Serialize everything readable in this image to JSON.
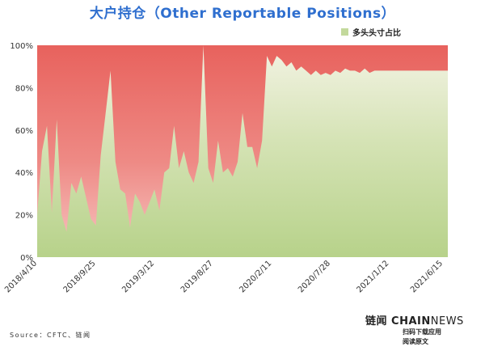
{
  "title": "大户持仓（Other Reportable Positions）",
  "source": "Source：CFTC、链闻",
  "brand": {
    "cn": "链闻",
    "en_bold": "CHAIN",
    "en_light": "NEWS",
    "sub1": "扫码下载应用",
    "sub2": "阅读原文"
  },
  "colors": {
    "top": "#e96a64",
    "top_light": "#f4b3b0",
    "bottom": "#b9d48d",
    "bottom_light": "#e8efd4"
  },
  "chart_data": {
    "type": "area",
    "title": "大户持仓（Other Reportable Positions）",
    "xlabel": "",
    "ylabel": "",
    "ylim": [
      0,
      100
    ],
    "y_ticks": [
      "0%",
      "20%",
      "40%",
      "60%",
      "80%",
      "100%"
    ],
    "x_ticks": [
      "2018/4/10",
      "2018/9/25",
      "2019/3/12",
      "2019/8/27",
      "2020/2/11",
      "2020/7/28",
      "2021/1/12",
      "2021/6/15"
    ],
    "legend": {
      "label": "多头头寸占比",
      "position": "top-right"
    },
    "series": [
      {
        "name": "多头头寸占比",
        "x": [
          "2018/4/10",
          "2018/4/24",
          "2018/5/8",
          "2018/5/22",
          "2018/6/5",
          "2018/6/19",
          "2018/7/3",
          "2018/7/17",
          "2018/7/31",
          "2018/8/14",
          "2018/8/28",
          "2018/9/11",
          "2018/9/25",
          "2018/10/9",
          "2018/10/23",
          "2018/11/6",
          "2018/11/20",
          "2018/12/4",
          "2018/12/18",
          "2019/1/1",
          "2019/1/15",
          "2019/1/29",
          "2019/2/12",
          "2019/2/26",
          "2019/3/12",
          "2019/3/26",
          "2019/4/9",
          "2019/4/23",
          "2019/5/7",
          "2019/5/21",
          "2019/6/4",
          "2019/6/18",
          "2019/7/2",
          "2019/7/16",
          "2019/7/30",
          "2019/8/13",
          "2019/8/27",
          "2019/9/10",
          "2019/9/24",
          "2019/10/8",
          "2019/10/22",
          "2019/11/5",
          "2019/11/19",
          "2019/12/3",
          "2019/12/17",
          "2019/12/31",
          "2020/1/14",
          "2020/1/28",
          "2020/2/11",
          "2020/2/25",
          "2020/3/10",
          "2020/3/24",
          "2020/4/7",
          "2020/4/21",
          "2020/5/5",
          "2020/5/19",
          "2020/6/2",
          "2020/6/16",
          "2020/6/30",
          "2020/7/14",
          "2020/7/28",
          "2020/8/11",
          "2020/8/25",
          "2020/9/8",
          "2020/9/22",
          "2020/10/6",
          "2020/10/20",
          "2020/11/3",
          "2020/11/17",
          "2020/12/1",
          "2020/12/15",
          "2020/12/29",
          "2021/1/12",
          "2021/1/26",
          "2021/2/9",
          "2021/2/23",
          "2021/3/9",
          "2021/3/23",
          "2021/4/6",
          "2021/4/20",
          "2021/5/4",
          "2021/5/18",
          "2021/6/1",
          "2021/6/15",
          "2021/6/29"
        ],
        "values": [
          20,
          50,
          62,
          21,
          65,
          20,
          12,
          35,
          30,
          38,
          28,
          18,
          15,
          48,
          68,
          88,
          45,
          32,
          30,
          14,
          30,
          26,
          20,
          26,
          32,
          22,
          40,
          42,
          62,
          42,
          50,
          40,
          35,
          45,
          100,
          42,
          35,
          55,
          40,
          42,
          38,
          45,
          68,
          52,
          52,
          42,
          55,
          95,
          90,
          95,
          93,
          90,
          92,
          88,
          90,
          88,
          86,
          88,
          86,
          87,
          86,
          88,
          87,
          89,
          88,
          88,
          87,
          89,
          87,
          88,
          88,
          88,
          88,
          88,
          88,
          88,
          88,
          88,
          88,
          88,
          88,
          88,
          88,
          88,
          88
        ]
      }
    ]
  }
}
